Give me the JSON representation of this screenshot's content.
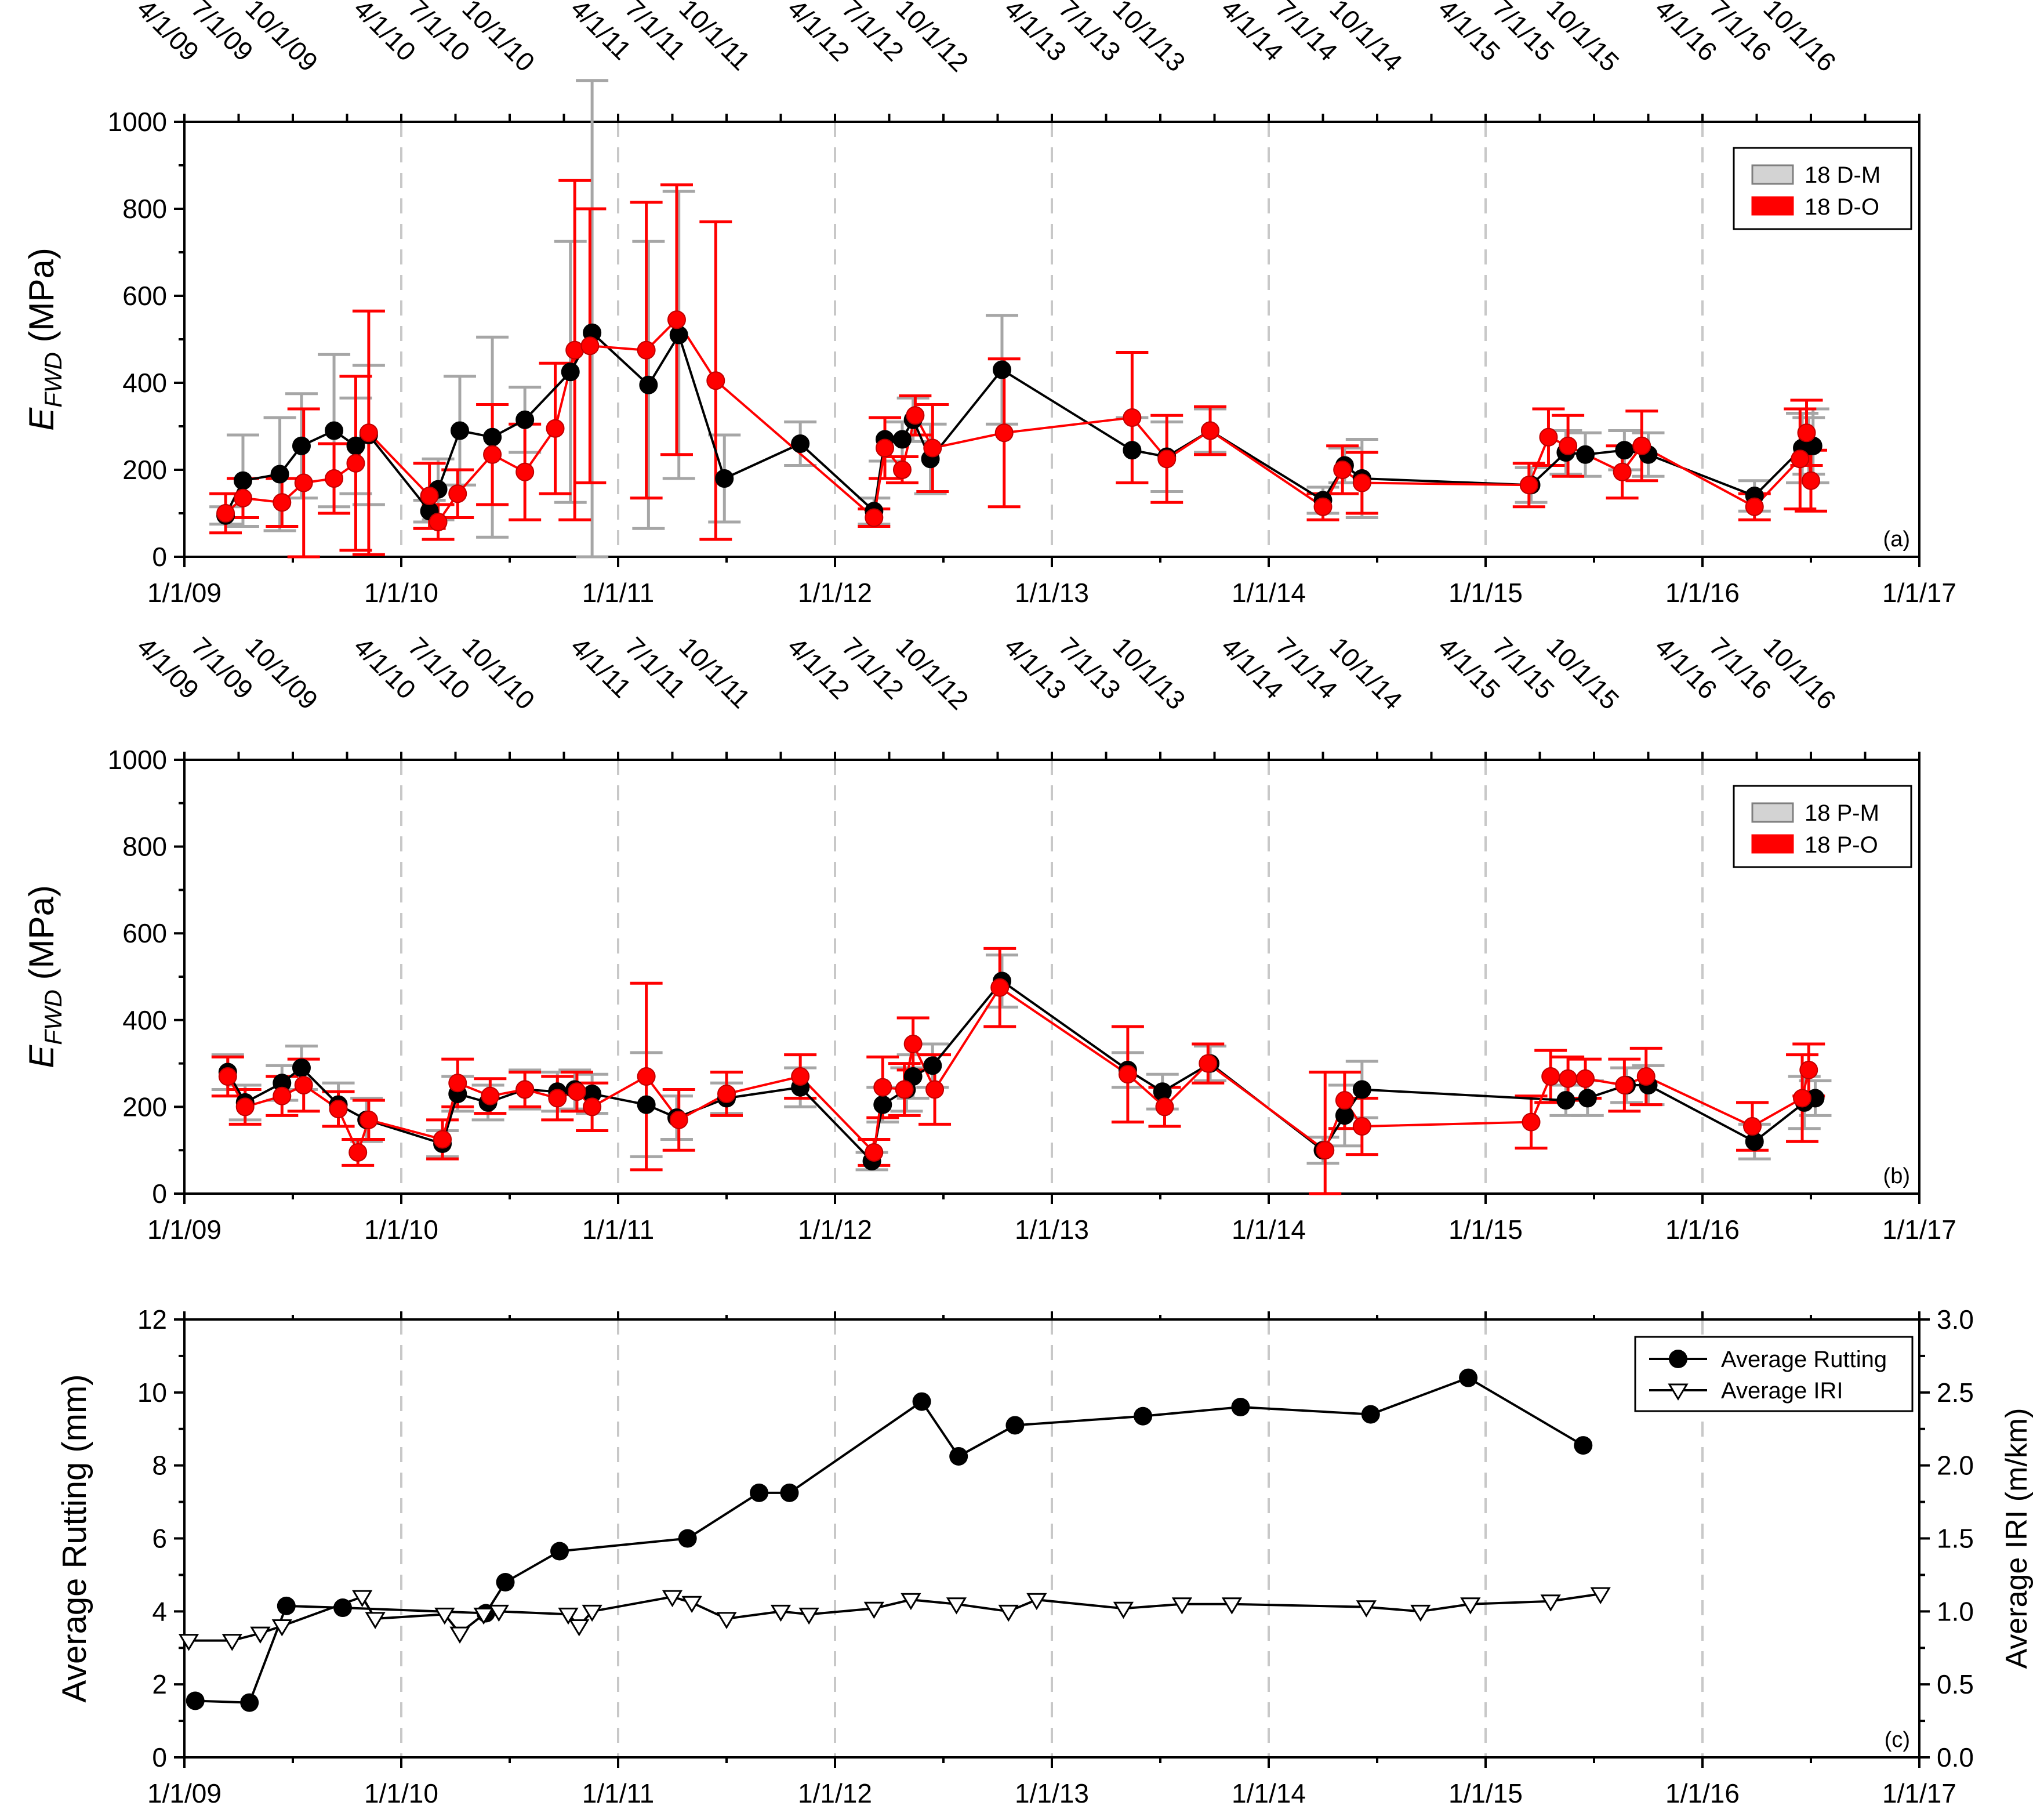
{
  "colors": {
    "black": "#000000",
    "red": "#ff0000",
    "grey": "#a6a6a6",
    "grid": "#c8c8c8"
  },
  "top_date_ticks": [
    "4/1/09",
    "7/1/09",
    "10/1/09",
    "4/1/10",
    "7/1/10",
    "10/1/10",
    "4/1/11",
    "7/1/11",
    "10/1/11",
    "4/1/12",
    "7/1/12",
    "10/1/12",
    "4/1/13",
    "7/1/13",
    "10/1/13",
    "4/1/14",
    "7/1/14",
    "10/1/14",
    "4/1/15",
    "7/1/15",
    "10/1/15",
    "4/1/16",
    "7/1/16",
    "10/1/16"
  ],
  "chart_data": [
    {
      "id": "a",
      "type": "line",
      "panel_label": "(a)",
      "ylabel_main": "E",
      "ylabel_sub": "FWD",
      "ylabel_unit": " (MPa)",
      "xlim": [
        2009.0,
        2017.0
      ],
      "ylim": [
        0,
        1000
      ],
      "y_ticks": [
        0,
        200,
        400,
        600,
        800,
        1000
      ],
      "x_ticks": [
        "1/1/09",
        "1/1/10",
        "1/1/11",
        "1/1/12",
        "1/1/13",
        "1/1/14",
        "1/1/15",
        "1/1/16",
        "1/1/17"
      ],
      "grid_years": [
        2010,
        2011,
        2012,
        2013,
        2014,
        2015,
        2016
      ],
      "legend": [
        "18 D-M",
        "18 D-O"
      ],
      "series": [
        {
          "name": "18 D-M",
          "color": "black",
          "bar_color": "grey",
          "x": [
            2009.19,
            2009.27,
            2009.44,
            2009.54,
            2009.69,
            2009.79,
            2009.85,
            2010.13,
            2010.17,
            2010.27,
            2010.42,
            2010.57,
            2010.78,
            2010.88,
            2011.14,
            2011.28,
            2011.49,
            2011.84,
            2012.18,
            2012.23,
            2012.31,
            2012.36,
            2012.44,
            2012.77,
            2013.37,
            2013.53,
            2013.73,
            2014.25,
            2014.35,
            2014.43,
            2015.21,
            2015.37,
            2015.46,
            2015.64,
            2015.75,
            2016.24,
            2016.46,
            2016.49,
            2016.51
          ],
          "y": [
            95,
            175,
            190,
            255,
            290,
            255,
            280,
            105,
            155,
            290,
            275,
            315,
            425,
            515,
            395,
            510,
            180,
            260,
            105,
            270,
            270,
            315,
            225,
            430,
            245,
            230,
            290,
            130,
            210,
            180,
            165,
            240,
            235,
            245,
            235,
            140,
            250,
            255,
            255
          ],
          "err": [
            20,
            105,
            130,
            120,
            175,
            110,
            160,
            25,
            70,
            125,
            230,
            75,
            300,
            580,
            330,
            330,
            100,
            50,
            30,
            50,
            40,
            50,
            80,
            125,
            75,
            80,
            50,
            30,
            40,
            90,
            40,
            50,
            50,
            45,
            50,
            35,
            80,
            65,
            85
          ]
        },
        {
          "name": "18 D-O",
          "color": "red",
          "bar_color": "red",
          "x": [
            2009.19,
            2009.27,
            2009.45,
            2009.55,
            2009.69,
            2009.79,
            2009.85,
            2010.13,
            2010.17,
            2010.26,
            2010.42,
            2010.57,
            2010.71,
            2010.8,
            2010.87,
            2011.13,
            2011.27,
            2011.45,
            2012.18,
            2012.23,
            2012.31,
            2012.37,
            2012.45,
            2012.78,
            2013.37,
            2013.53,
            2013.73,
            2014.25,
            2014.34,
            2014.43,
            2015.2,
            2015.29,
            2015.38,
            2015.63,
            2015.72,
            2016.24,
            2016.45,
            2016.48,
            2016.5
          ],
          "y": [
            100,
            135,
            125,
            170,
            180,
            215,
            285,
            140,
            80,
            145,
            235,
            195,
            295,
            475,
            485,
            475,
            545,
            405,
            90,
            250,
            200,
            325,
            250,
            285,
            320,
            225,
            290,
            115,
            200,
            170,
            165,
            275,
            255,
            195,
            255,
            115,
            225,
            285,
            175
          ],
          "err": [
            45,
            45,
            55,
            170,
            80,
            200,
            280,
            75,
            40,
            55,
            115,
            110,
            150,
            390,
            315,
            340,
            310,
            365,
            20,
            70,
            30,
            45,
            100,
            170,
            150,
            100,
            55,
            30,
            55,
            70,
            50,
            65,
            70,
            60,
            80,
            30,
            115,
            75,
            70
          ]
        }
      ]
    },
    {
      "id": "b",
      "type": "line",
      "panel_label": "(b)",
      "ylabel_main": "E",
      "ylabel_sub": "FWD",
      "ylabel_unit": " (MPa)",
      "xlim": [
        2009.0,
        2017.0
      ],
      "ylim": [
        0,
        1000
      ],
      "y_ticks": [
        0,
        200,
        400,
        600,
        800,
        1000
      ],
      "x_ticks": [
        "1/1/09",
        "1/1/10",
        "1/1/11",
        "1/1/12",
        "1/1/13",
        "1/1/14",
        "1/1/15",
        "1/1/16",
        "1/1/17"
      ],
      "grid_years": [
        2010,
        2011,
        2012,
        2013,
        2014,
        2015,
        2016
      ],
      "legend": [
        "18 P-M",
        "18 P-O"
      ],
      "series": [
        {
          "name": "18 P-M",
          "color": "black",
          "bar_color": "grey",
          "x": [
            2009.2,
            2009.28,
            2009.45,
            2009.54,
            2009.71,
            2009.84,
            2010.19,
            2010.26,
            2010.4,
            2010.57,
            2010.72,
            2010.8,
            2010.88,
            2011.13,
            2011.27,
            2011.5,
            2011.84,
            2012.17,
            2012.22,
            2012.33,
            2012.36,
            2012.45,
            2012.77,
            2013.35,
            2013.51,
            2013.73,
            2014.25,
            2014.35,
            2014.43,
            2015.37,
            2015.47,
            2015.65,
            2015.75,
            2016.24,
            2016.47,
            2016.52
          ],
          "y": [
            280,
            210,
            255,
            290,
            205,
            170,
            115,
            230,
            210,
            240,
            235,
            240,
            230,
            205,
            175,
            220,
            245,
            75,
            205,
            240,
            270,
            295,
            490,
            285,
            235,
            300,
            100,
            180,
            240,
            215,
            220,
            250,
            250,
            120,
            210,
            220
          ],
          "err": [
            40,
            40,
            40,
            50,
            50,
            50,
            30,
            40,
            40,
            45,
            45,
            45,
            45,
            120,
            50,
            35,
            45,
            20,
            40,
            50,
            50,
            50,
            60,
            40,
            40,
            40,
            30,
            70,
            65,
            35,
            40,
            40,
            45,
            40,
            60,
            40
          ]
        },
        {
          "name": "18 P-O",
          "color": "red",
          "bar_color": "red",
          "x": [
            2009.2,
            2009.28,
            2009.45,
            2009.55,
            2009.71,
            2009.8,
            2009.85,
            2010.19,
            2010.26,
            2010.41,
            2010.57,
            2010.72,
            2010.81,
            2010.88,
            2011.13,
            2011.28,
            2011.5,
            2011.84,
            2012.18,
            2012.22,
            2012.32,
            2012.36,
            2012.46,
            2012.76,
            2013.35,
            2013.52,
            2013.72,
            2014.26,
            2014.35,
            2014.43,
            2015.21,
            2015.3,
            2015.38,
            2015.46,
            2015.64,
            2015.74,
            2016.23,
            2016.46,
            2016.49
          ],
          "y": [
            270,
            200,
            225,
            250,
            195,
            95,
            170,
            125,
            255,
            225,
            240,
            220,
            235,
            200,
            270,
            170,
            230,
            270,
            95,
            245,
            240,
            345,
            240,
            475,
            275,
            200,
            300,
            100,
            215,
            155,
            165,
            270,
            265,
            265,
            250,
            270,
            155,
            220,
            285
          ],
          "err": [
            45,
            40,
            45,
            60,
            40,
            30,
            45,
            45,
            55,
            40,
            40,
            50,
            45,
            55,
            215,
            70,
            50,
            50,
            30,
            70,
            60,
            60,
            80,
            90,
            110,
            45,
            45,
            180,
            65,
            65,
            60,
            60,
            50,
            45,
            60,
            65,
            55,
            100,
            60
          ]
        }
      ]
    },
    {
      "id": "c",
      "type": "line",
      "panel_label": "(c)",
      "ylabel": "Average Rutting (mm)",
      "y2label": "Average IRI (m/km)",
      "xlim": [
        2009.0,
        2017.0
      ],
      "ylim": [
        0,
        12
      ],
      "y2lim": [
        0.0,
        3.0
      ],
      "y_ticks": [
        0,
        2,
        4,
        6,
        8,
        10,
        12
      ],
      "y2_ticks": [
        "0.0",
        "0.5",
        "1.0",
        "1.5",
        "2.0",
        "2.5",
        "3.0"
      ],
      "x_ticks": [
        "1/1/09",
        "1/1/10",
        "1/1/11",
        "1/1/12",
        "1/1/13",
        "1/1/14",
        "1/1/15",
        "1/1/16",
        "1/1/17"
      ],
      "grid_years": [
        2010,
        2011,
        2012,
        2013,
        2014,
        2015,
        2016
      ],
      "legend": [
        "Average Rutting",
        "Average IRI"
      ],
      "series": [
        {
          "name": "Average Rutting",
          "axis": "left",
          "marker": "circle",
          "x": [
            2009.05,
            2009.3,
            2009.47,
            2009.73,
            2010.39,
            2010.48,
            2010.73,
            2011.32,
            2011.65,
            2011.79,
            2012.4,
            2012.57,
            2012.83,
            2013.42,
            2013.87,
            2014.47,
            2014.92,
            2015.45
          ],
          "y": [
            1.55,
            1.5,
            4.15,
            4.1,
            3.95,
            4.8,
            5.65,
            6.0,
            7.25,
            7.25,
            9.75,
            8.25,
            9.1,
            9.35,
            9.6,
            9.4,
            10.4,
            8.55
          ]
        },
        {
          "name": "Average IRI",
          "axis": "right",
          "marker": "triangle-down",
          "x": [
            2009.02,
            2009.22,
            2009.35,
            2009.45,
            2009.82,
            2009.88,
            2010.2,
            2010.27,
            2010.38,
            2010.45,
            2010.77,
            2010.82,
            2010.88,
            2011.25,
            2011.34,
            2011.5,
            2011.75,
            2011.88,
            2012.18,
            2012.35,
            2012.56,
            2012.8,
            2012.93,
            2013.33,
            2013.6,
            2013.83,
            2014.45,
            2014.7,
            2014.93,
            2015.3,
            2015.53
          ],
          "y": [
            0.8,
            0.8,
            0.85,
            0.9,
            1.1,
            0.95,
            0.98,
            0.85,
            0.98,
            1.0,
            0.98,
            0.9,
            1.0,
            1.1,
            1.06,
            0.95,
            1.0,
            0.98,
            1.02,
            1.08,
            1.05,
            1.0,
            1.08,
            1.02,
            1.05,
            1.05,
            1.03,
            1.0,
            1.05,
            1.07,
            1.12
          ]
        }
      ]
    }
  ]
}
